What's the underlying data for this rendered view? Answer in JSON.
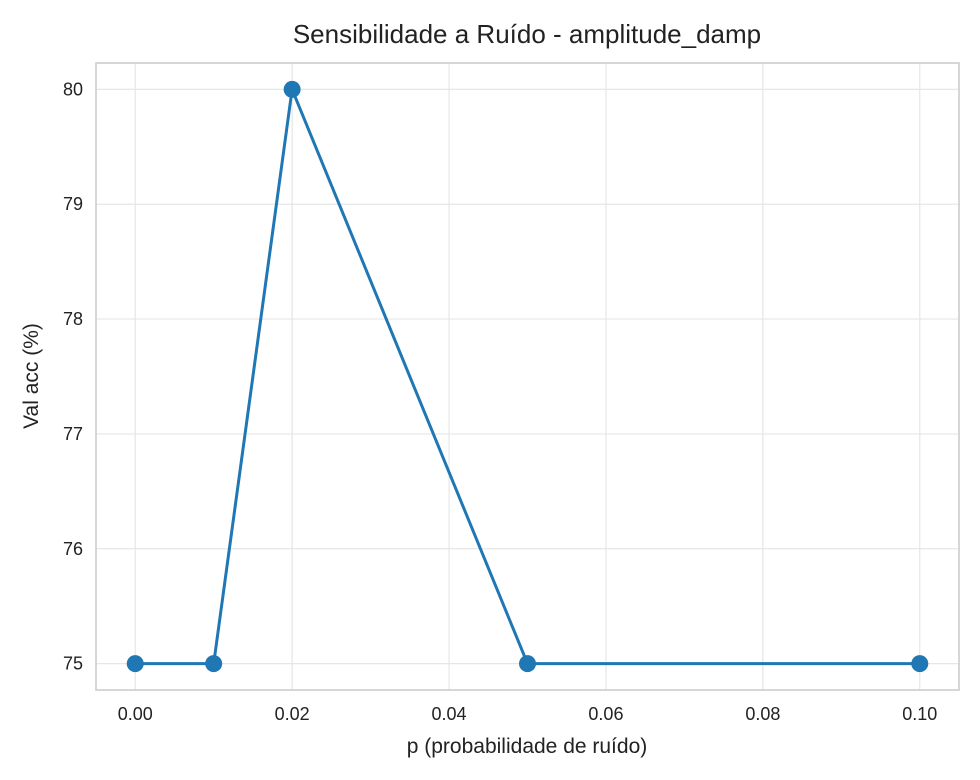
{
  "chart_data": {
    "type": "line",
    "title": "Sensibilidade a Ruído - amplitude_damp",
    "xlabel": "p (probabilidade de ruído)",
    "ylabel": "Val acc (%)",
    "x": [
      0.0,
      0.01,
      0.02,
      0.05,
      0.1
    ],
    "series": [
      {
        "values": [
          75,
          75,
          80,
          75,
          75
        ]
      }
    ],
    "xlim": [
      -0.005,
      0.105
    ],
    "ylim": [
      74.77,
      80.23
    ],
    "xticks": [
      0.0,
      0.02,
      0.04,
      0.06,
      0.08,
      0.1
    ],
    "xtick_labels": [
      "0.00",
      "0.02",
      "0.04",
      "0.06",
      "0.08",
      "0.10"
    ],
    "yticks": [
      75,
      76,
      77,
      78,
      79,
      80
    ],
    "ytick_labels": [
      "75",
      "76",
      "77",
      "78",
      "79",
      "80"
    ],
    "grid": true,
    "legend": false,
    "marker": "circle",
    "colors": {
      "series": "#1f77b4",
      "grid": "#e6e6e6",
      "frame": "#cccccc",
      "text": "#222222"
    }
  }
}
